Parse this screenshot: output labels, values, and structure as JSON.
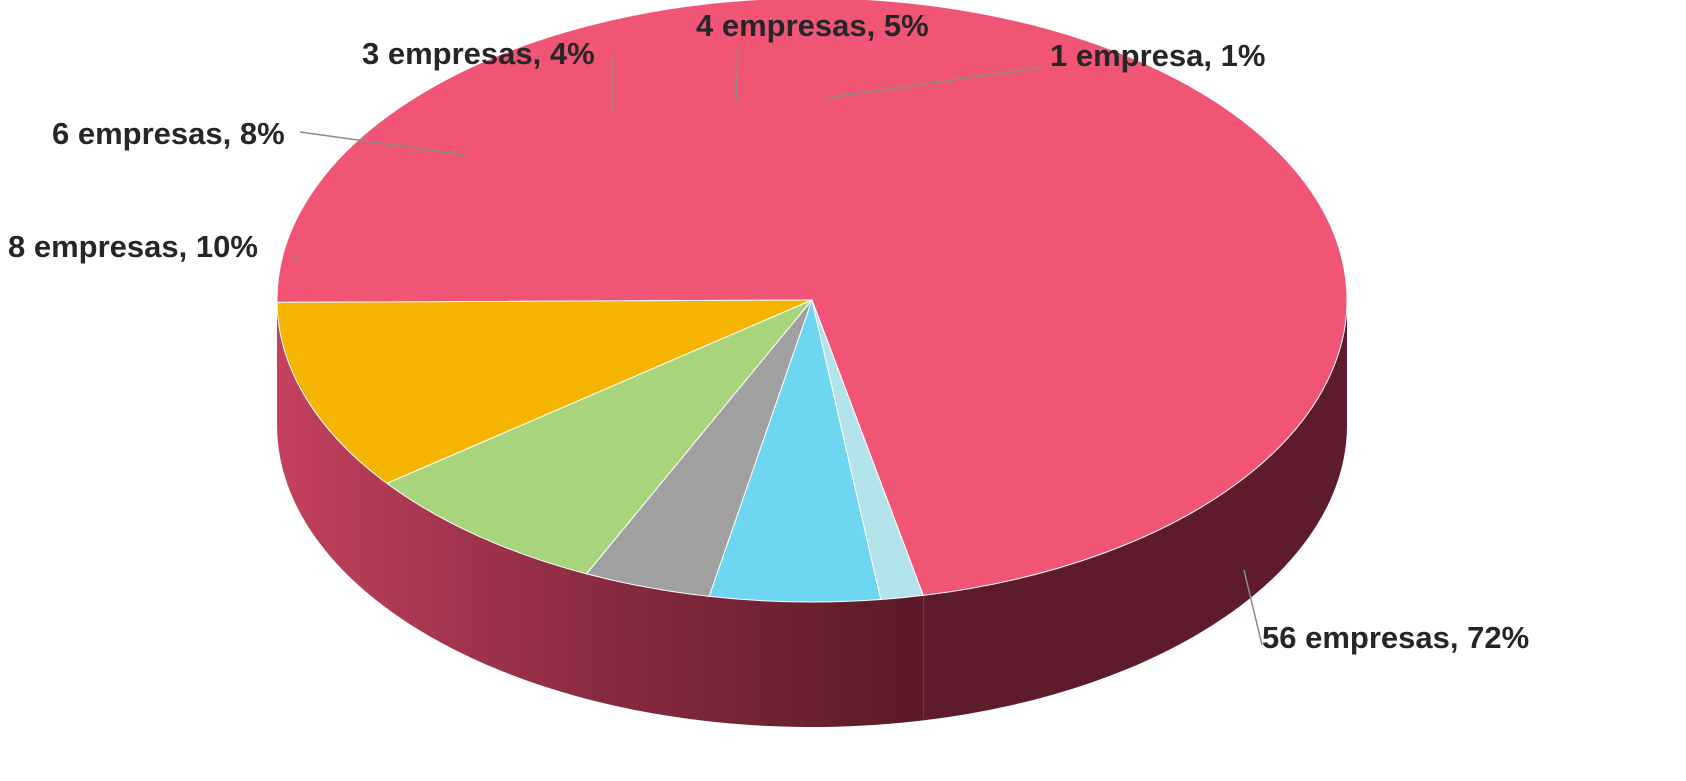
{
  "chart_data": {
    "type": "pie",
    "style": "3d",
    "slices": [
      {
        "count": 56,
        "label": "56 empresas, 72%",
        "percent": 72,
        "color": "#f05576"
      },
      {
        "count": 8,
        "label": "8 empresas, 10%",
        "percent": 10,
        "color": "#f5b400"
      },
      {
        "count": 6,
        "label": "6 empresas, 8%",
        "percent": 8,
        "color": "#a8d57c"
      },
      {
        "count": 3,
        "label": "3 empresas, 4%",
        "percent": 4,
        "color": "#a0a0a0"
      },
      {
        "count": 4,
        "label": "4 empresas, 5%",
        "percent": 5,
        "color": "#6fd6f2"
      },
      {
        "count": 1,
        "label": "1 empresa, 1%",
        "percent": 1,
        "color": "#b2e3ea"
      }
    ],
    "title": "",
    "legend": "none"
  }
}
